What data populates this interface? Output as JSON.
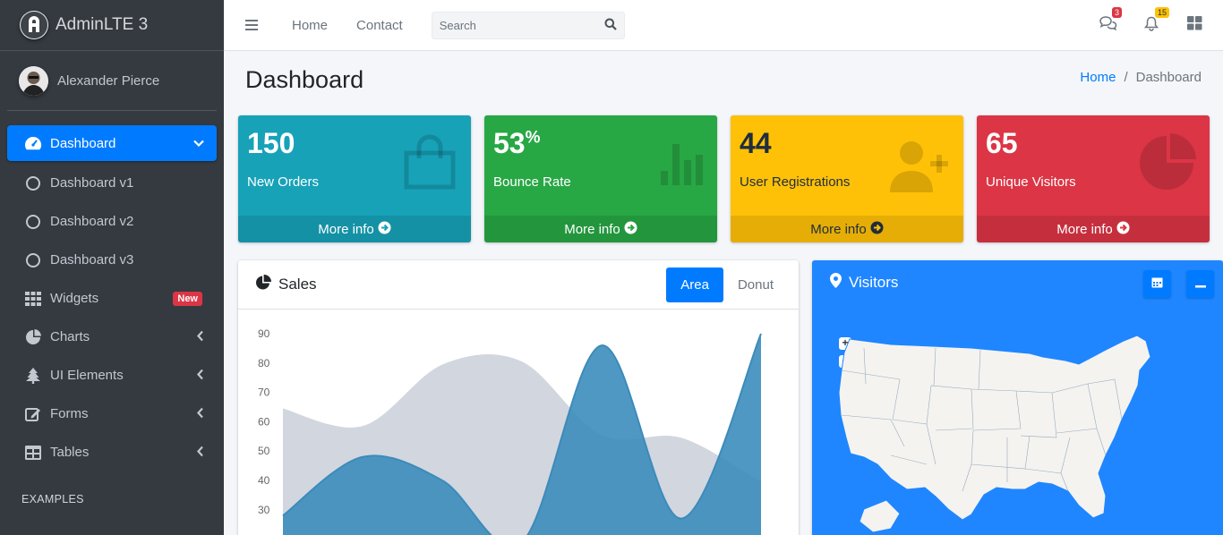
{
  "brand": {
    "name": "AdminLTE 3"
  },
  "user": {
    "name": "Alexander Pierce"
  },
  "sidebar": {
    "items": [
      {
        "label": "Dashboard"
      },
      {
        "label": "Dashboard v1"
      },
      {
        "label": "Dashboard v2"
      },
      {
        "label": "Dashboard v3"
      },
      {
        "label": "Widgets",
        "badge": "New"
      },
      {
        "label": "Charts"
      },
      {
        "label": "UI Elements"
      },
      {
        "label": "Forms"
      },
      {
        "label": "Tables"
      }
    ],
    "header": "EXAMPLES"
  },
  "topnav": {
    "links": [
      "Home",
      "Contact"
    ],
    "search_placeholder": "Search",
    "messages_count": "3",
    "notifications_count": "15"
  },
  "page": {
    "title": "Dashboard",
    "breadcrumb": [
      "Home",
      "Dashboard"
    ]
  },
  "boxes": [
    {
      "value": "150",
      "sup": "",
      "label": "New Orders",
      "more": "More info",
      "color": "#17a2b8"
    },
    {
      "value": "53",
      "sup": "%",
      "label": "Bounce Rate",
      "more": "More info",
      "color": "#28a745"
    },
    {
      "value": "44",
      "sup": "",
      "label": "User Registrations",
      "more": "More info",
      "color": "#ffc107"
    },
    {
      "value": "65",
      "sup": "",
      "label": "Unique Visitors",
      "more": "More info",
      "color": "#dc3545"
    }
  ],
  "sales": {
    "title": "Sales",
    "tabs": [
      "Area",
      "Donut"
    ],
    "active_tab": "Area"
  },
  "visitors": {
    "title": "Visitors"
  },
  "chart_data": {
    "type": "area",
    "title": "",
    "yticks": [
      "90",
      "80",
      "70",
      "60",
      "50",
      "40",
      "30"
    ],
    "ylim": [
      20,
      90
    ],
    "series": [
      {
        "values": [
          65,
          59,
          80,
          81,
          56,
          55,
          40
        ],
        "color": "#d2d6de"
      },
      {
        "values": [
          28,
          48,
          40,
          19,
          86,
          27,
          90
        ],
        "color": "#3c8dbc"
      }
    ]
  }
}
